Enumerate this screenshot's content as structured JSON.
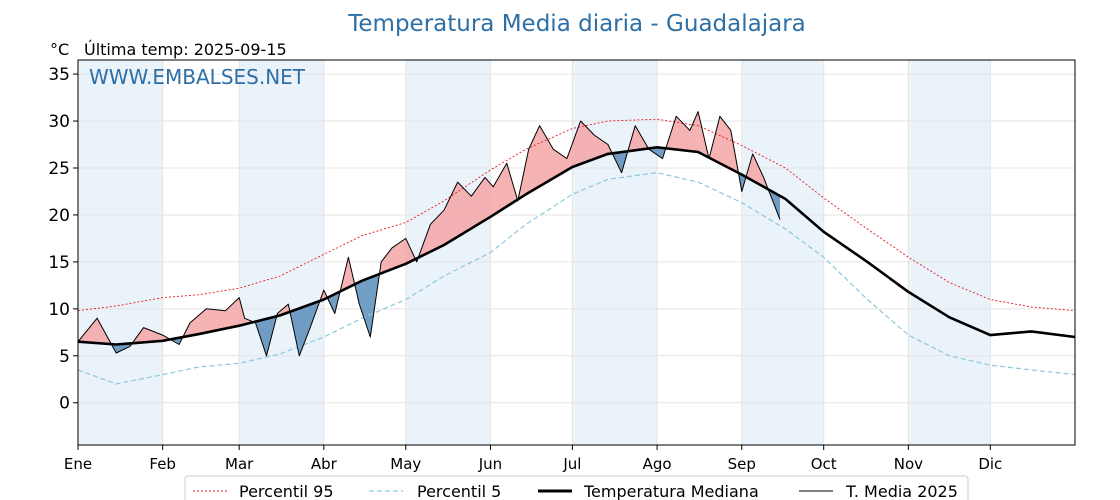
{
  "chart_data": {
    "type": "line",
    "title": "Temperatura Media diaria - Guadalajara",
    "unit_label": "°C",
    "last_temp_label": "Última temp: 2025-09-15",
    "watermark": "WWW.EMBALSES.NET",
    "ylim": [
      -4.5,
      36.5
    ],
    "yticks": [
      0,
      5,
      10,
      15,
      20,
      25,
      30,
      35
    ],
    "xlim": [
      1,
      366
    ],
    "month_labels": [
      "Ene",
      "Feb",
      "Mar",
      "Abr",
      "May",
      "Jun",
      "Jul",
      "Ago",
      "Sep",
      "Oct",
      "Nov",
      "Dic"
    ],
    "month_starts": [
      1,
      32,
      60,
      91,
      121,
      152,
      182,
      213,
      244,
      274,
      305,
      335,
      366
    ],
    "grid": true,
    "legend_position": "bottom",
    "colors": {
      "p95": "#e41a1c",
      "p5": "#8ec8dc",
      "median": "#000000",
      "current": "#000000",
      "above_fill": "#f4a6a6",
      "below_fill": "#5b8db8",
      "month_shade": "#eaf2fa",
      "title": "#2e6fa6"
    },
    "series": [
      {
        "key": "p95",
        "name": "Percentil 95",
        "style": "dotted-red",
        "days": [
          1,
          15,
          32,
          45,
          60,
          75,
          91,
          105,
          121,
          135,
          152,
          165,
          182,
          195,
          213,
          228,
          244,
          260,
          274,
          290,
          305,
          320,
          335,
          350,
          366
        ],
        "values": [
          9.8,
          10.3,
          11.2,
          11.5,
          12.2,
          13.5,
          15.8,
          17.8,
          19.2,
          21.5,
          24.8,
          27.0,
          29.2,
          30.0,
          30.2,
          29.5,
          27.4,
          25.0,
          21.8,
          18.5,
          15.5,
          12.8,
          11.0,
          10.2,
          9.8
        ]
      },
      {
        "key": "p5",
        "name": "Percentil 5",
        "style": "dashed-lightblue",
        "days": [
          1,
          15,
          32,
          45,
          60,
          75,
          91,
          105,
          121,
          135,
          152,
          165,
          182,
          195,
          213,
          228,
          244,
          260,
          274,
          290,
          305,
          320,
          335,
          350,
          366
        ],
        "values": [
          3.5,
          2.0,
          3.0,
          3.8,
          4.2,
          5.2,
          7.0,
          9.0,
          11.0,
          13.5,
          16.0,
          19.0,
          22.2,
          23.8,
          24.5,
          23.5,
          21.3,
          18.5,
          15.5,
          11.0,
          7.2,
          5.0,
          4.0,
          3.5,
          3.0
        ]
      },
      {
        "key": "median",
        "name": "Temperatura Mediana",
        "style": "thick-black",
        "days": [
          1,
          15,
          32,
          45,
          60,
          75,
          91,
          105,
          121,
          135,
          152,
          165,
          182,
          195,
          213,
          228,
          244,
          260,
          274,
          290,
          305,
          320,
          335,
          350,
          366
        ],
        "values": [
          6.5,
          6.2,
          6.6,
          7.3,
          8.2,
          9.3,
          11.0,
          13.0,
          14.8,
          16.8,
          19.8,
          22.2,
          25.1,
          26.5,
          27.2,
          26.7,
          24.3,
          21.7,
          18.2,
          15.0,
          11.8,
          9.1,
          7.2,
          7.6,
          7.0
        ]
      },
      {
        "key": "current",
        "name": "T. Media 2025",
        "style": "thin-black",
        "days": [
          1,
          8,
          15,
          20,
          25,
          32,
          38,
          42,
          48,
          55,
          60,
          62,
          66,
          70,
          74,
          78,
          82,
          86,
          91,
          95,
          100,
          104,
          108,
          112,
          116,
          121,
          125,
          130,
          135,
          140,
          145,
          150,
          153,
          158,
          162,
          166,
          170,
          175,
          180,
          185,
          190,
          195,
          200,
          205,
          210,
          215,
          220,
          225,
          228,
          232,
          236,
          240,
          244,
          248,
          252,
          258
        ],
        "values": [
          6.5,
          9.0,
          5.3,
          6.0,
          8.0,
          7.2,
          6.2,
          8.5,
          10.0,
          9.8,
          11.2,
          9.0,
          8.5,
          5.0,
          9.5,
          10.5,
          5.0,
          8.0,
          12.0,
          9.5,
          15.5,
          10.5,
          7.0,
          15.0,
          16.5,
          17.5,
          15.0,
          19.0,
          20.5,
          23.5,
          22.0,
          24.0,
          23.0,
          25.5,
          21.5,
          27.0,
          29.5,
          27.0,
          26.0,
          30.0,
          28.5,
          27.5,
          24.5,
          29.5,
          27.0,
          26.0,
          30.5,
          29.0,
          31.0,
          26.0,
          30.5,
          29.0,
          22.5,
          26.5,
          24.0,
          19.5
        ]
      }
    ]
  },
  "legend": {
    "items": [
      {
        "label": "Percentil 95"
      },
      {
        "label": "Percentil 5"
      },
      {
        "label": "Temperatura Mediana"
      },
      {
        "label": "T. Media 2025"
      }
    ]
  }
}
